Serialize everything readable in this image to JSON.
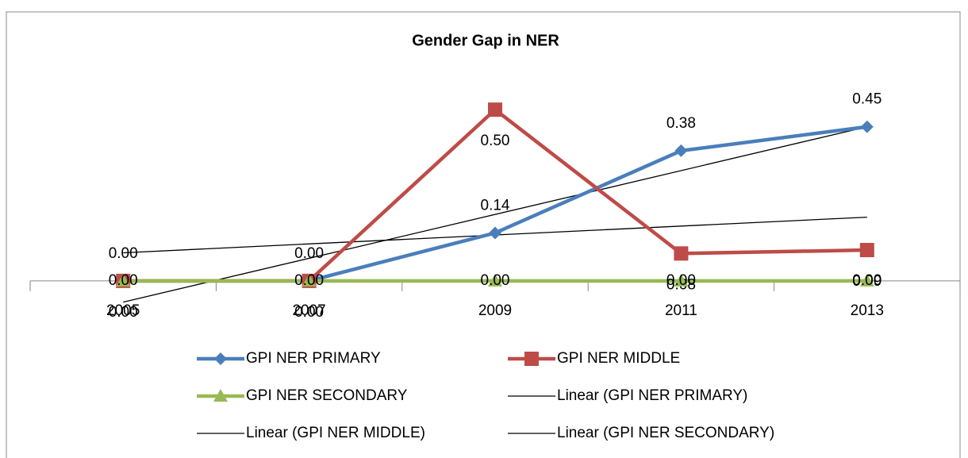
{
  "chart_data": {
    "type": "line",
    "title": "Gender Gap in NER",
    "categories": [
      "2005",
      "2007",
      "2009",
      "2011",
      "2013"
    ],
    "series": [
      {
        "name": "GPI NER PRIMARY",
        "color": "#4a7ebb",
        "marker": "diamond",
        "values": [
          0,
          0,
          0.14,
          0.38,
          0.45
        ],
        "value_labels": [
          "0.00",
          "0.00",
          "0.14",
          "0.38",
          "0.45"
        ]
      },
      {
        "name": "GPI NER MIDDLE",
        "color": "#be4b48",
        "marker": "square",
        "values": [
          0,
          0,
          0.5,
          0.08,
          0.09
        ],
        "value_labels": [
          "0.00",
          "0.00",
          "0.50",
          "0.08",
          "0.09"
        ]
      },
      {
        "name": "GPI NER SECONDARY",
        "color": "#98b954",
        "marker": "triangle",
        "values": [
          0,
          0,
          0,
          0,
          0
        ],
        "value_labels": [
          "0.00",
          "0.00",
          "0.00",
          "0.00",
          "0.00"
        ]
      }
    ],
    "trendline_names": [
      "Linear (GPI NER PRIMARY)",
      "Linear (GPI NER MIDDLE)",
      "Linear (GPI NER SECONDARY)"
    ],
    "trendline_color": "#000000",
    "ylim": [
      -0.1,
      0.6
    ]
  }
}
